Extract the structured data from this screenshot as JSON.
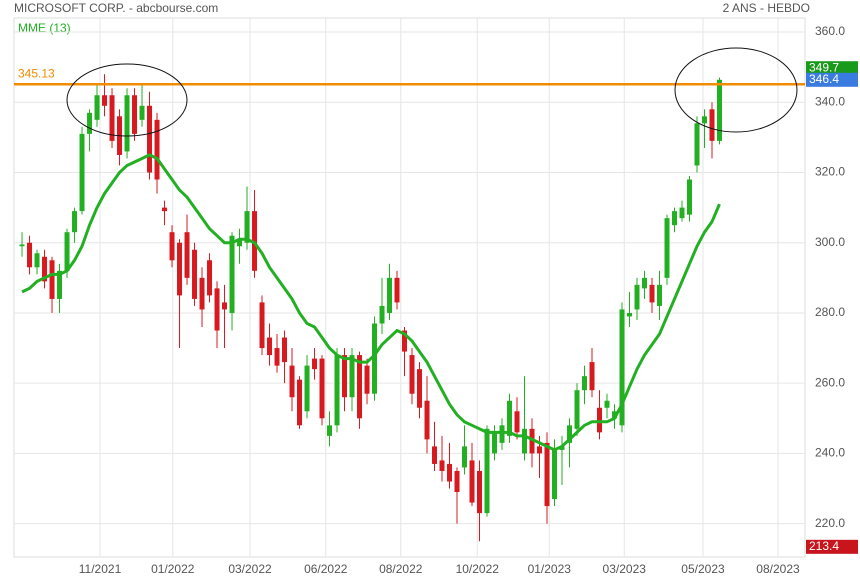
{
  "chart_data": {
    "type": "candlestick",
    "title": "MICROSOFT CORP. - abcbourse.com",
    "period": "2 ANS - HEBDO",
    "up_color": "#22b022",
    "down_color": "#d71920",
    "grid": true,
    "ylim": [
      210.5,
      364
    ],
    "yticks": [
      {
        "value": 220,
        "label": "220.0"
      },
      {
        "value": 240,
        "label": "240.0"
      },
      {
        "value": 260,
        "label": "260.0"
      },
      {
        "value": 280,
        "label": "280.0"
      },
      {
        "value": 300,
        "label": "300.0"
      },
      {
        "value": 320,
        "label": "320.0"
      },
      {
        "value": 340,
        "label": "340.0"
      },
      {
        "value": 360,
        "label": "360.0"
      }
    ],
    "xlim": [
      -1.07,
      104.4
    ],
    "xticks": [
      {
        "value": 10.4,
        "label": "11/2021"
      },
      {
        "value": 20.1,
        "label": "01/2022"
      },
      {
        "value": 30.4,
        "label": "03/2022"
      },
      {
        "value": 40.5,
        "label": "06/2022"
      },
      {
        "value": 50.5,
        "label": "08/2022"
      },
      {
        "value": 60.7,
        "label": "10/2022"
      },
      {
        "value": 70.3,
        "label": "01/2023"
      },
      {
        "value": 80.3,
        "label": "03/2023"
      },
      {
        "value": 90.8,
        "label": "05/2023"
      },
      {
        "value": 100.8,
        "label": "08/2023"
      }
    ],
    "ohlc": {
      "open": [
        299,
        300,
        293,
        296,
        295,
        284,
        292,
        303,
        309,
        331,
        335,
        342,
        342,
        336,
        326,
        342,
        335,
        339,
        335,
        310,
        303,
        300,
        303,
        298,
        290,
        295,
        287,
        283,
        280,
        299,
        300,
        309,
        283,
        273,
        270,
        273,
        265,
        261,
        252,
        267,
        267,
        245,
        248,
        268,
        256,
        268,
        265,
        257,
        277,
        280,
        290,
        275,
        268,
        264,
        255,
        242,
        238,
        237,
        235,
        236,
        238,
        235,
        223,
        240,
        243,
        245,
        252,
        240,
        247,
        242,
        243,
        227,
        241,
        243,
        247,
        258,
        266,
        253,
        253,
        250,
        248,
        279,
        281,
        287,
        288,
        282,
        290,
        305,
        307,
        308,
        322,
        334,
        338,
        329
      ],
      "high": [
        303,
        302,
        298,
        298,
        296,
        294,
        304,
        310,
        333,
        338,
        345,
        348,
        344,
        338,
        344,
        344,
        345,
        343,
        337,
        312,
        305,
        301,
        308,
        300,
        293,
        297,
        289,
        288,
        303,
        304,
        316,
        315,
        285,
        277,
        274,
        275,
        270,
        262,
        268,
        270,
        268,
        252,
        270,
        270,
        270,
        269,
        267,
        279,
        290,
        294,
        292,
        276,
        270,
        266,
        262,
        249,
        245,
        243,
        236,
        248,
        243,
        238,
        248,
        248,
        250,
        257,
        256,
        262,
        250,
        245,
        246,
        244,
        245,
        250,
        260,
        265,
        270,
        258,
        257,
        254,
        283,
        286,
        290,
        292,
        290,
        292,
        308,
        310,
        312,
        319,
        336,
        338,
        340,
        347
      ],
      "low": [
        296,
        291,
        291,
        287,
        280,
        280,
        290,
        300,
        308,
        326,
        333,
        336,
        327,
        322,
        324,
        329,
        333,
        318,
        314,
        305,
        293,
        270,
        288,
        282,
        276,
        283,
        270,
        270,
        275,
        294,
        298,
        290,
        268,
        265,
        263,
        260,
        252,
        247,
        250,
        261,
        248,
        242,
        246,
        252,
        252,
        247,
        254,
        255,
        274,
        278,
        281,
        262,
        254,
        250,
        240,
        235,
        232,
        230,
        220,
        234,
        225,
        215,
        222,
        238,
        241,
        243,
        244,
        238,
        236,
        233,
        220,
        225,
        231,
        236,
        245,
        254,
        256,
        244,
        250,
        247,
        246,
        276,
        278,
        284,
        280,
        278,
        288,
        303,
        306,
        306,
        320,
        327,
        324,
        328
      ],
      "close": [
        299.5,
        293,
        297,
        289,
        284,
        292,
        303,
        309,
        331,
        337,
        342,
        339,
        329,
        325,
        342,
        331,
        339,
        320,
        318,
        309,
        295,
        285,
        290,
        284,
        281,
        285,
        275,
        281,
        302,
        301,
        309,
        292,
        270,
        268,
        265,
        266,
        256,
        248,
        265,
        264,
        250,
        248,
        268,
        256,
        268,
        250,
        257,
        277,
        282,
        290,
        283,
        269,
        257,
        253,
        244,
        237,
        235,
        232,
        229,
        242,
        226,
        223,
        247,
        246,
        248,
        255,
        246,
        247,
        240,
        240,
        225,
        241,
        242,
        248,
        258,
        262,
        258,
        246,
        255,
        252,
        281,
        280,
        288,
        290,
        283,
        288,
        307,
        309,
        310,
        318,
        334,
        336,
        329,
        346.4
      ]
    },
    "ema": {
      "name": "MME (13)",
      "color": "#22b022",
      "values": [
        286,
        287,
        289,
        290,
        291,
        291,
        292,
        295,
        299,
        305,
        310,
        314,
        317,
        320,
        322,
        323,
        324,
        325,
        324,
        321,
        318,
        315,
        313,
        310,
        307,
        304,
        302,
        300,
        300,
        301,
        301,
        300,
        297,
        293,
        290,
        287,
        284,
        280,
        277,
        276,
        273,
        270,
        268,
        267,
        267,
        266,
        266,
        268,
        271,
        273,
        275,
        274,
        272,
        269,
        266,
        262,
        258,
        254,
        251,
        249,
        248,
        247,
        246,
        246,
        246,
        246,
        245,
        245,
        244,
        243,
        242,
        241,
        242,
        244,
        246,
        248,
        249,
        249,
        249,
        250,
        254,
        259,
        264,
        268,
        271,
        274,
        279,
        284,
        289,
        294,
        299,
        303,
        306,
        311
      ]
    },
    "hline": {
      "value": 345.13,
      "color": "#f08c00"
    },
    "price_tags": [
      {
        "value": 349.7,
        "color": "#1a9a1a"
      },
      {
        "value": 346.4,
        "color": "#3a7be0"
      },
      {
        "value": 213.4,
        "color": "#c8141c"
      }
    ]
  }
}
